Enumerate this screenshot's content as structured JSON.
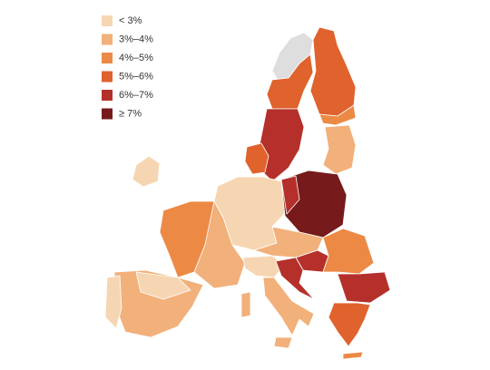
{
  "legend": {
    "items": [
      {
        "label": "< 3%",
        "color": "#f6d6b2"
      },
      {
        "label": "3%–4%",
        "color": "#f2b07a"
      },
      {
        "label": "4%–5%",
        "color": "#ec8a45"
      },
      {
        "label": "5%–6%",
        "color": "#e0622c"
      },
      {
        "label": "6%–7%",
        "color": "#b5302a"
      },
      {
        "label": "≥ 7%",
        "color": "#761a1c"
      }
    ]
  },
  "no_data_color": "#dedede"
}
